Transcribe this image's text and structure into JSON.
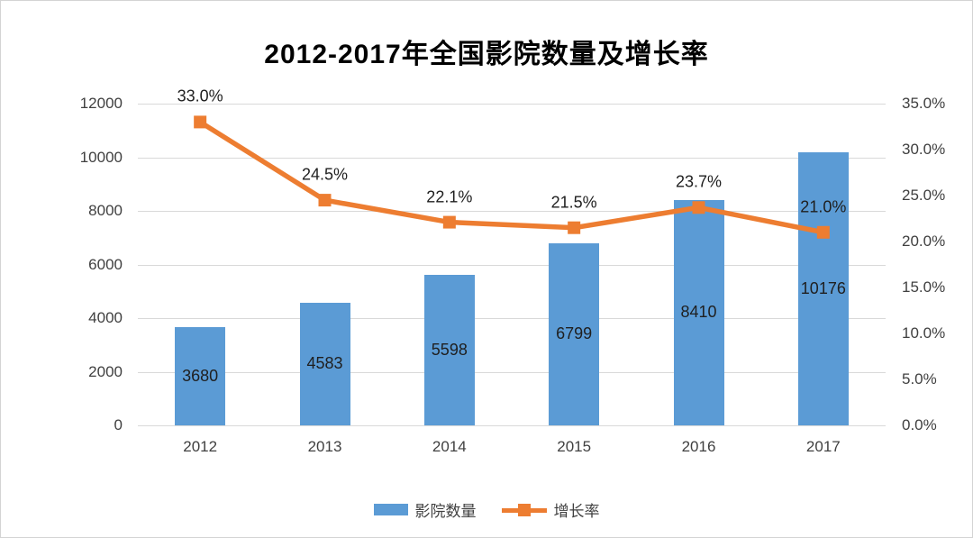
{
  "chart_data": {
    "type": "bar",
    "subtype": "combo-bar-line-dual-axis",
    "title": "2012-2017年全国影院数量及增长率",
    "categories": [
      "2012",
      "2013",
      "2014",
      "2015",
      "2016",
      "2017"
    ],
    "series": [
      {
        "name": "影院数量",
        "type": "bar",
        "axis": "left",
        "values": [
          3680,
          4583,
          5598,
          6799,
          8410,
          10176
        ],
        "data_labels": [
          "3680",
          "4583",
          "5598",
          "6799",
          "8410",
          "10176"
        ],
        "color": "#5B9BD5"
      },
      {
        "name": "增长率",
        "type": "line",
        "axis": "right",
        "values": [
          33.0,
          24.5,
          22.1,
          21.5,
          23.7,
          21.0
        ],
        "data_labels": [
          "33.0%",
          "24.5%",
          "22.1%",
          "21.5%",
          "23.7%",
          "21.0%"
        ],
        "color": "#ED7D31",
        "marker": "square"
      }
    ],
    "left_axis": {
      "min": 0,
      "max": 12000,
      "step": 2000,
      "tick_labels": [
        "0",
        "2000",
        "4000",
        "6000",
        "8000",
        "10000",
        "12000"
      ]
    },
    "right_axis": {
      "min": 0,
      "max": 35,
      "step": 5,
      "tick_labels": [
        "0.0%",
        "5.0%",
        "10.0%",
        "15.0%",
        "20.0%",
        "25.0%",
        "30.0%",
        "35.0%"
      ]
    },
    "grid": "horizontal",
    "gridline_color": "#D9D9D9",
    "legend_position": "bottom",
    "legend": [
      {
        "label": "影院数量",
        "swatch": "bar",
        "color": "#5B9BD5"
      },
      {
        "label": "增长率",
        "swatch": "line-with-square-marker",
        "color": "#ED7D31"
      }
    ]
  }
}
